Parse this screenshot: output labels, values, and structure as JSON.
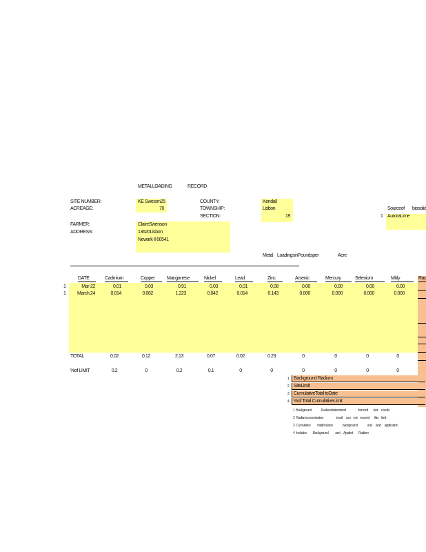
{
  "title": [
    "METALLOADING",
    "RECORD"
  ],
  "labels": {
    "site": "SITE    NUMBER:",
    "acreage": "ACREAGE:",
    "county": "COUNTY:",
    "township": "TOWNSHIP:",
    "section": "SECTION:",
    "farmer": "FARMER:",
    "address": "ADDRESS:",
    "source1": "Sourceof",
    "source2": "biosolids",
    "source_num": "1"
  },
  "values": {
    "site": "KE   Sweson25",
    "acreage": "70",
    "county": "Kendall",
    "township": "Lisbon",
    "section": "19",
    "farmer": "ClaireSwenson",
    "address1": "13620Lisbon",
    "address2": "Newark       Il  60541",
    "source": "AuroraLime"
  },
  "metal_heading": [
    "Metal",
    "LoadingsinPoundsper",
    "Acre"
  ],
  "columns": [
    "DATE",
    "Cadmium",
    "Copper",
    "Manganese",
    "Nickel",
    "Lead",
    "Zinc",
    "Arsenic",
    "Mercury",
    "Selenium",
    "Mbly",
    "Rad"
  ],
  "rows": [
    {
      "num": "1",
      "date": "Mar-22",
      "vals": [
        "0.01",
        "0.03",
        "0.91",
        "0.03",
        "0.01",
        "0.08",
        "0.00",
        "0.00",
        "0.00",
        "0.00"
      ]
    },
    {
      "num": "1",
      "date": "March.24",
      "vals": [
        "0.014",
        "0.082",
        "1.223",
        "0.042",
        "0.014",
        "0.143",
        "0.000",
        "0.000",
        "0.000",
        "0.000"
      ]
    }
  ],
  "total": {
    "label": "TOTAL",
    "vals": [
      "0.02",
      "0.12",
      "2.13",
      "0.07",
      "0.02",
      "0.23",
      "0",
      "0",
      "0",
      "0"
    ]
  },
  "limit": {
    "label": "%of    LIMIT",
    "vals": [
      "0.2",
      "0",
      "0.2",
      "0.1",
      "0",
      "0",
      "0",
      "0",
      "0",
      "0"
    ]
  },
  "radium_box": [
    {
      "num": "1",
      "text": "Background            Radium"
    },
    {
      "num": "2",
      "text": "SiteLimit"
    },
    {
      "num": "3",
      "text": "CumulativeTotal                  toDate"
    },
    {
      "num": "4",
      "text": "%of      Total      CumulativeLimit"
    }
  ],
  "notes": [
    "1  Background              Radiumdetermined                  fromsoil        test     results",
    "2  Radiumconcentration                   insoil     can    not    exceed       this    limit",
    "3  Cumulative          totalincludes              background              and     land     application",
    "4  Includes         Background          and     Applied        Radium"
  ]
}
